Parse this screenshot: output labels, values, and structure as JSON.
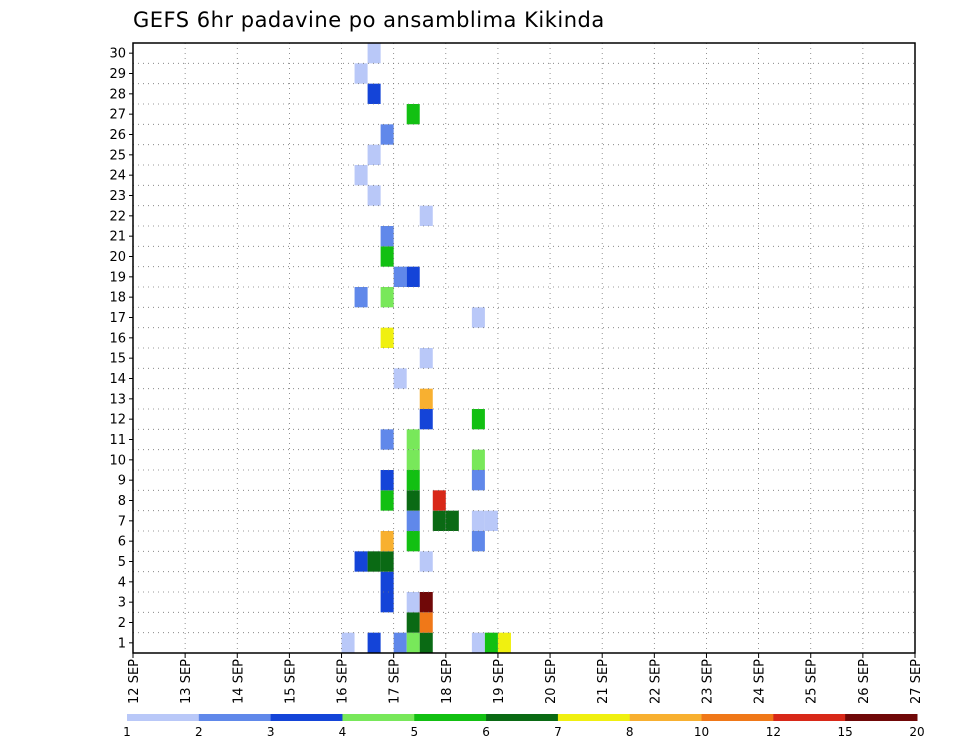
{
  "chart_data": {
    "type": "heatmap",
    "title": "GEFS 6hr padavine po ansamblima Kikinda",
    "xlabel": "",
    "ylabel": "",
    "x_ticks": [
      "12 SEP",
      "13 SEP",
      "14 SEP",
      "15 SEP",
      "16 SEP",
      "17 SEP",
      "18 SEP",
      "19 SEP",
      "20 SEP",
      "21 SEP",
      "22 SEP",
      "23 SEP",
      "24 SEP",
      "25 SEP",
      "26 SEP",
      "27 SEP"
    ],
    "y_ticks": [
      1,
      2,
      3,
      4,
      5,
      6,
      7,
      8,
      9,
      10,
      11,
      12,
      13,
      14,
      15,
      16,
      17,
      18,
      19,
      20,
      21,
      22,
      23,
      24,
      25,
      26,
      27,
      28,
      29,
      30
    ],
    "x_step_hours": 6,
    "grid": true,
    "colorbar": {
      "labels": [
        "1",
        "2",
        "3",
        "4",
        "5",
        "6",
        "7",
        "8",
        "10",
        "12",
        "15",
        "20"
      ],
      "colors": [
        "#b9c8f8",
        "#6088ea",
        "#1444d8",
        "#78e85a",
        "#12c012",
        "#0a6a14",
        "#f0f010",
        "#f8b030",
        "#f07818",
        "#d82818",
        "#700808"
      ]
    },
    "cells": [
      [
        1,
        16,
        1
      ],
      [
        1,
        16.5,
        3
      ],
      [
        1,
        17,
        2
      ],
      [
        1,
        17.25,
        4
      ],
      [
        1,
        17.5,
        6
      ],
      [
        1,
        18.5,
        1
      ],
      [
        1,
        18.75,
        5
      ],
      [
        1,
        19,
        7
      ],
      [
        2,
        17.25,
        6
      ],
      [
        2,
        17.5,
        9
      ],
      [
        3,
        16.75,
        3
      ],
      [
        3,
        17.25,
        1
      ],
      [
        3,
        17.5,
        11
      ],
      [
        4,
        16.75,
        3
      ],
      [
        5,
        16.25,
        3
      ],
      [
        5,
        16.5,
        6
      ],
      [
        5,
        16.75,
        6
      ],
      [
        5,
        17.5,
        1
      ],
      [
        6,
        16.75,
        8
      ],
      [
        6,
        17.25,
        5
      ],
      [
        6,
        18.5,
        2
      ],
      [
        7,
        17.25,
        2
      ],
      [
        7,
        17.75,
        6
      ],
      [
        7,
        18,
        6
      ],
      [
        7,
        18.5,
        1
      ],
      [
        7,
        18.75,
        1
      ],
      [
        8,
        16.75,
        5
      ],
      [
        8,
        17.25,
        6
      ],
      [
        8,
        17.75,
        10
      ],
      [
        9,
        16.75,
        3
      ],
      [
        9,
        17.25,
        5
      ],
      [
        9,
        18.5,
        2
      ],
      [
        10,
        17.25,
        4
      ],
      [
        10,
        18.5,
        4
      ],
      [
        11,
        16.75,
        2
      ],
      [
        11,
        17.25,
        4
      ],
      [
        12,
        17.5,
        3
      ],
      [
        12,
        18.5,
        5
      ],
      [
        13,
        17.5,
        8
      ],
      [
        14,
        17,
        1
      ],
      [
        15,
        17.5,
        1
      ],
      [
        16,
        16.75,
        7
      ],
      [
        17,
        18.5,
        1
      ],
      [
        18,
        16.25,
        2
      ],
      [
        18,
        16.75,
        4
      ],
      [
        19,
        17,
        2
      ],
      [
        19,
        17.25,
        3
      ],
      [
        20,
        16.75,
        5
      ],
      [
        21,
        16.75,
        2
      ],
      [
        22,
        17.5,
        1
      ],
      [
        23,
        16.5,
        1
      ],
      [
        24,
        16.25,
        1
      ],
      [
        25,
        16.5,
        1
      ],
      [
        26,
        16.75,
        2
      ],
      [
        27,
        17.25,
        5
      ],
      [
        28,
        16.5,
        3
      ],
      [
        29,
        16.25,
        1
      ],
      [
        30,
        16.5,
        1
      ]
    ]
  }
}
